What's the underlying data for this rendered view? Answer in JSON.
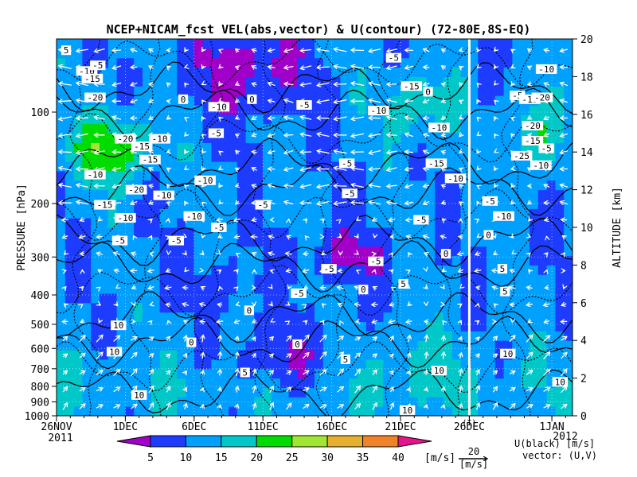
{
  "chart_data": {
    "type": "heatmap",
    "title": "NCEP+NICAM_fcst VEL(abs,vector) & U(contour)   (72-80E,8S-EQ)",
    "ylabel_left": "PRESSURE [hPa]",
    "ylabel_right": "ALTITUDE [km]",
    "x_ticks": [
      "26NOV",
      "1DEC",
      "6DEC",
      "11DEC",
      "16DEC",
      "21DEC",
      "26DEC",
      "1JAN"
    ],
    "x_start_year": "2011",
    "x_end_year": "2012",
    "x_range_days": [
      0,
      37.5
    ],
    "x_tick_days": [
      0,
      5,
      10,
      15,
      20,
      25,
      30,
      36
    ],
    "forecast_start_day": 30,
    "forecast_marker_label": "(I)",
    "pressure_ticks": [
      100,
      200,
      300,
      400,
      500,
      600,
      700,
      800,
      900,
      1000
    ],
    "altitude_ticks": [
      0,
      2,
      4,
      6,
      8,
      10,
      12,
      14,
      16,
      18,
      20
    ],
    "altitude_range": [
      0,
      20
    ],
    "colorbar": {
      "ticks": [
        5,
        10,
        15,
        20,
        25,
        30,
        35,
        40
      ],
      "colors": [
        "#a000c8",
        "#1e3cff",
        "#00a0ff",
        "#00c8c8",
        "#00dc00",
        "#a0e632",
        "#e6af2d",
        "#f08228",
        "#e6148c"
      ],
      "unit": "[m/s]"
    },
    "vector_ref": {
      "value": "20",
      "unit": "[m/s]"
    },
    "legend_lines": [
      "U(black) [m/s]",
      "vector: (U,V)"
    ],
    "contour_labels": [
      {
        "day": 0.7,
        "alt": 19.4,
        "v": "5"
      },
      {
        "day": 2.2,
        "alt": 18.3,
        "v": "-10"
      },
      {
        "day": 3.0,
        "alt": 18.6,
        "v": "-5"
      },
      {
        "day": 2.6,
        "alt": 17.9,
        "v": "-15"
      },
      {
        "day": 2.8,
        "alt": 16.9,
        "v": "-20"
      },
      {
        "day": 5.0,
        "alt": 14.7,
        "v": "-20"
      },
      {
        "day": 6.2,
        "alt": 14.3,
        "v": "-15"
      },
      {
        "day": 7.5,
        "alt": 14.7,
        "v": "-10"
      },
      {
        "day": 6.8,
        "alt": 13.6,
        "v": "-15"
      },
      {
        "day": 2.8,
        "alt": 12.8,
        "v": "-10"
      },
      {
        "day": 5.8,
        "alt": 12.0,
        "v": "-20"
      },
      {
        "day": 7.8,
        "alt": 11.7,
        "v": "-10"
      },
      {
        "day": 3.5,
        "alt": 11.2,
        "v": "-15"
      },
      {
        "day": 10.8,
        "alt": 12.5,
        "v": "-10"
      },
      {
        "day": 5.0,
        "alt": 10.5,
        "v": "-10"
      },
      {
        "day": 10.0,
        "alt": 10.6,
        "v": "-10"
      },
      {
        "day": 11.8,
        "alt": 10.0,
        "v": "-5"
      },
      {
        "day": 4.6,
        "alt": 9.3,
        "v": "-5"
      },
      {
        "day": 8.7,
        "alt": 9.3,
        "v": "-5"
      },
      {
        "day": 11.8,
        "alt": 16.4,
        "v": "-10"
      },
      {
        "day": 9.2,
        "alt": 16.8,
        "v": "0"
      },
      {
        "day": 14.2,
        "alt": 16.8,
        "v": "0"
      },
      {
        "day": 11.6,
        "alt": 15.0,
        "v": "-5"
      },
      {
        "day": 18.0,
        "alt": 16.5,
        "v": "-5"
      },
      {
        "day": 21.1,
        "alt": 13.4,
        "v": "-5"
      },
      {
        "day": 15.0,
        "alt": 11.2,
        "v": "-5"
      },
      {
        "day": 21.3,
        "alt": 11.8,
        "v": "-5"
      },
      {
        "day": 24.5,
        "alt": 19.0,
        "v": "-5"
      },
      {
        "day": 25.8,
        "alt": 17.5,
        "v": "-15"
      },
      {
        "day": 23.4,
        "alt": 16.2,
        "v": "-10"
      },
      {
        "day": 27.0,
        "alt": 17.2,
        "v": "0"
      },
      {
        "day": 27.8,
        "alt": 15.3,
        "v": "-10"
      },
      {
        "day": 27.6,
        "alt": 13.4,
        "v": "-15"
      },
      {
        "day": 29.0,
        "alt": 12.6,
        "v": "-10"
      },
      {
        "day": 26.5,
        "alt": 10.4,
        "v": "-5"
      },
      {
        "day": 28.3,
        "alt": 8.6,
        "v": "0"
      },
      {
        "day": 25.2,
        "alt": 7.0,
        "v": "5"
      },
      {
        "day": 23.2,
        "alt": 8.2,
        "v": "-5"
      },
      {
        "day": 17.6,
        "alt": 6.5,
        "v": "-5"
      },
      {
        "day": 14.0,
        "alt": 5.6,
        "v": "0"
      },
      {
        "day": 19.8,
        "alt": 7.8,
        "v": "-5"
      },
      {
        "day": 22.3,
        "alt": 6.7,
        "v": "0"
      },
      {
        "day": 17.5,
        "alt": 3.8,
        "v": "0"
      },
      {
        "day": 21.0,
        "alt": 3.0,
        "v": "5"
      },
      {
        "day": 9.8,
        "alt": 3.9,
        "v": "0"
      },
      {
        "day": 4.5,
        "alt": 4.8,
        "v": "10"
      },
      {
        "day": 4.2,
        "alt": 3.4,
        "v": "10"
      },
      {
        "day": 13.7,
        "alt": 2.3,
        "v": "5"
      },
      {
        "day": 6.0,
        "alt": 1.1,
        "v": "10"
      },
      {
        "day": 27.8,
        "alt": 2.4,
        "v": "10"
      },
      {
        "day": 25.5,
        "alt": 0.3,
        "v": "10"
      },
      {
        "day": 31.5,
        "alt": 11.4,
        "v": "-5"
      },
      {
        "day": 32.5,
        "alt": 10.6,
        "v": "-10"
      },
      {
        "day": 31.4,
        "alt": 9.6,
        "v": "0"
      },
      {
        "day": 32.4,
        "alt": 7.8,
        "v": "5"
      },
      {
        "day": 32.6,
        "alt": 6.6,
        "v": "5"
      },
      {
        "day": 32.8,
        "alt": 3.3,
        "v": "10"
      },
      {
        "day": 35.6,
        "alt": 18.4,
        "v": "-10"
      },
      {
        "day": 33.5,
        "alt": 17.0,
        "v": "-5"
      },
      {
        "day": 34.4,
        "alt": 16.8,
        "v": "-15"
      },
      {
        "day": 35.3,
        "alt": 16.9,
        "v": "-20"
      },
      {
        "day": 34.6,
        "alt": 15.4,
        "v": "-20"
      },
      {
        "day": 34.6,
        "alt": 14.6,
        "v": "-15"
      },
      {
        "day": 35.6,
        "alt": 14.2,
        "v": "-5"
      },
      {
        "day": 33.8,
        "alt": 13.8,
        "v": "-25"
      },
      {
        "day": 35.2,
        "alt": 13.3,
        "v": "-10"
      },
      {
        "day": 36.6,
        "alt": 1.8,
        "v": "10"
      }
    ]
  }
}
